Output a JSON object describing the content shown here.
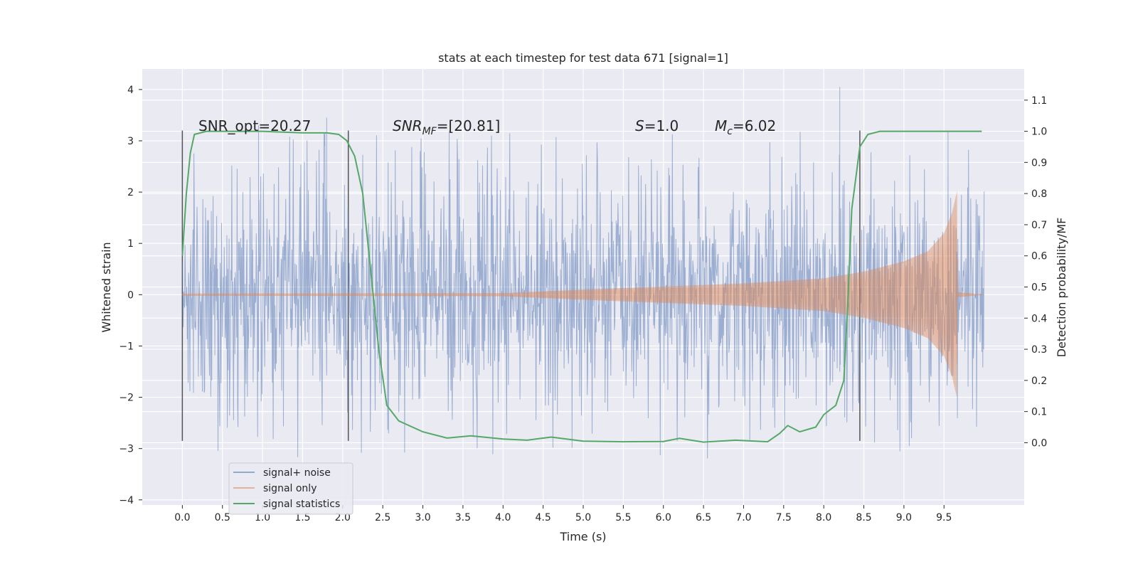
{
  "chart_data": {
    "type": "line",
    "title": "stats at each timestep for test data 671 [signal=1]",
    "xlabel": "Time (s)",
    "ylabel_left": "Whitened strain",
    "ylabel_right": "Detection probability/MF",
    "xlim": [
      -0.5,
      10.5
    ],
    "ylim_left": [
      -4.1,
      4.4
    ],
    "ylim_right": [
      -0.2,
      1.2
    ],
    "x_ticks": [
      "0.0",
      "0.5",
      "1.0",
      "1.5",
      "2.0",
      "2.5",
      "3.0",
      "3.5",
      "4.0",
      "4.5",
      "5.0",
      "5.5",
      "6.0",
      "6.5",
      "7.0",
      "7.5",
      "8.0",
      "8.5",
      "9.0",
      "9.5"
    ],
    "y_ticks_left": [
      "−4",
      "−3",
      "−2",
      "−1",
      "0",
      "1",
      "2",
      "3",
      "4"
    ],
    "y_ticks_right": [
      "0.0",
      "0.1",
      "0.2",
      "0.3",
      "0.4",
      "0.5",
      "0.6",
      "0.7",
      "0.8",
      "0.9",
      "1.0",
      "1.1"
    ],
    "grid": true,
    "legend_position": "bottom-left",
    "annotations": {
      "snr_opt": "SNR_opt=20.27",
      "snr_mf_base": "SNR",
      "snr_mf_sub": "MF",
      "snr_mf_rest": "=[20.81]",
      "s_sym": "S",
      "s_rest": "=1.0",
      "mc_sym": "M",
      "mc_sub": "c",
      "mc_rest": "=6.02"
    },
    "vertical_markers_x": [
      0.0,
      2.07,
      8.45
    ],
    "series": [
      {
        "name": "signal+ noise",
        "color": "#4c72b0",
        "axis": "left",
        "description_range": [
          0.0,
          10.0
        ],
        "typical_amplitude": 1.35,
        "peak_values": [
          4.05,
          3.45,
          3.3,
          3.2
        ]
      },
      {
        "name": "signal only",
        "color": "#dd8452",
        "axis": "left",
        "envelope": [
          [
            0.0,
            0.02
          ],
          [
            4.0,
            0.03
          ],
          [
            5.0,
            0.1
          ],
          [
            6.0,
            0.16
          ],
          [
            7.0,
            0.22
          ],
          [
            8.0,
            0.32
          ],
          [
            8.5,
            0.45
          ],
          [
            9.0,
            0.65
          ],
          [
            9.3,
            0.85
          ],
          [
            9.5,
            1.2
          ],
          [
            9.6,
            1.6
          ],
          [
            9.66,
            2.0
          ],
          [
            9.67,
            0.05
          ],
          [
            10.0,
            0.0
          ]
        ]
      },
      {
        "name": "signal statistics",
        "color": "#55a868",
        "axis": "right",
        "points": [
          [
            0.0,
            0.6
          ],
          [
            0.05,
            0.8
          ],
          [
            0.1,
            0.93
          ],
          [
            0.15,
            0.99
          ],
          [
            0.3,
            1.0
          ],
          [
            0.6,
            1.0
          ],
          [
            1.0,
            1.0
          ],
          [
            1.5,
            0.995
          ],
          [
            1.8,
            0.995
          ],
          [
            1.95,
            0.99
          ],
          [
            2.05,
            0.97
          ],
          [
            2.15,
            0.92
          ],
          [
            2.25,
            0.8
          ],
          [
            2.35,
            0.55
          ],
          [
            2.45,
            0.3
          ],
          [
            2.55,
            0.12
          ],
          [
            2.7,
            0.07
          ],
          [
            3.0,
            0.035
          ],
          [
            3.3,
            0.015
          ],
          [
            3.6,
            0.022
          ],
          [
            4.0,
            0.012
          ],
          [
            4.3,
            0.008
          ],
          [
            4.6,
            0.018
          ],
          [
            5.0,
            0.005
          ],
          [
            5.5,
            0.003
          ],
          [
            6.0,
            0.004
          ],
          [
            6.2,
            0.014
          ],
          [
            6.5,
            0.002
          ],
          [
            6.9,
            0.008
          ],
          [
            7.3,
            0.003
          ],
          [
            7.45,
            0.03
          ],
          [
            7.55,
            0.055
          ],
          [
            7.7,
            0.035
          ],
          [
            7.9,
            0.05
          ],
          [
            8.0,
            0.09
          ],
          [
            8.15,
            0.12
          ],
          [
            8.25,
            0.2
          ],
          [
            8.3,
            0.45
          ],
          [
            8.35,
            0.75
          ],
          [
            8.45,
            0.95
          ],
          [
            8.55,
            0.99
          ],
          [
            8.7,
            1.0
          ],
          [
            9.2,
            1.0
          ],
          [
            9.97,
            1.0
          ]
        ]
      }
    ]
  }
}
